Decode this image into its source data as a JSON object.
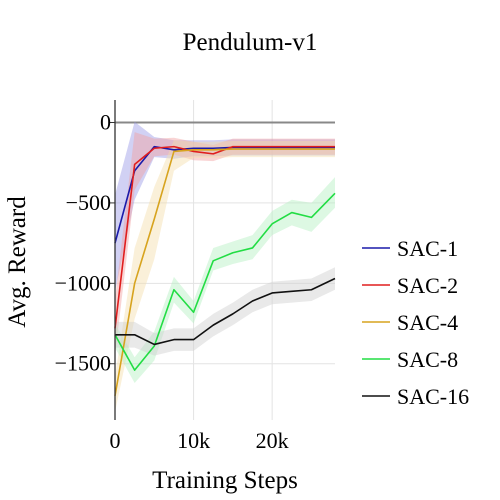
{
  "chart_data": {
    "type": "line",
    "title": "Pendulum-v1",
    "xlabel": "Training Steps",
    "ylabel": "Avg. Reward",
    "xlim": [
      0,
      28000
    ],
    "ylim": [
      -1850,
      140
    ],
    "x_ticks": [
      {
        "value": 0,
        "label": "0"
      },
      {
        "value": 10000,
        "label": "10k"
      },
      {
        "value": 20000,
        "label": "20k"
      }
    ],
    "y_ticks": [
      {
        "value": 0,
        "label": "0"
      },
      {
        "value": -500,
        "label": "−500"
      },
      {
        "value": -1000,
        "label": "−1000"
      },
      {
        "value": -1500,
        "label": "−1500"
      }
    ],
    "grid": true,
    "legend_position": "right",
    "series": [
      {
        "name": "SAC-1",
        "color": "#1a1aaa",
        "band_color": "#9a9ae6",
        "x": [
          0,
          2500,
          5000,
          7500,
          10000,
          12500,
          15000,
          17500,
          20000,
          22500,
          25000,
          28000
        ],
        "y": [
          -750,
          -300,
          -150,
          -170,
          -160,
          -160,
          -155,
          -155,
          -155,
          -155,
          -155,
          -155
        ],
        "lower": [
          -1050,
          -480,
          -215,
          -225,
          -210,
          -210,
          -205,
          -205,
          -205,
          -205,
          -205,
          -205
        ],
        "upper": [
          -450,
          5,
          -90,
          -110,
          -110,
          -110,
          -105,
          -105,
          -105,
          -105,
          -105,
          -105
        ]
      },
      {
        "name": "SAC-2",
        "color": "#e01e1e",
        "band_color": "#f2a0a0",
        "x": [
          0,
          2500,
          5000,
          7500,
          10000,
          12500,
          15000,
          17500,
          20000,
          22500,
          25000,
          28000
        ],
        "y": [
          -1280,
          -260,
          -160,
          -150,
          -180,
          -195,
          -150,
          -150,
          -150,
          -150,
          -150,
          -150
        ],
        "lower": [
          -1450,
          -420,
          -210,
          -200,
          -235,
          -240,
          -200,
          -200,
          -200,
          -200,
          -200,
          -200
        ],
        "upper": [
          -1100,
          -60,
          -100,
          -95,
          -120,
          -140,
          -100,
          -100,
          -100,
          -100,
          -100,
          -100
        ]
      },
      {
        "name": "SAC-4",
        "color": "#d7a31e",
        "band_color": "#f3deaa",
        "x": [
          0,
          2500,
          5000,
          7500,
          10000,
          12500,
          15000,
          17500,
          20000,
          22500,
          25000,
          28000
        ],
        "y": [
          -1700,
          -1000,
          -600,
          -180,
          -170,
          -170,
          -165,
          -165,
          -165,
          -165,
          -165,
          -165
        ],
        "lower": [
          -1800,
          -1220,
          -850,
          -300,
          -220,
          -220,
          -215,
          -215,
          -215,
          -215,
          -215,
          -215
        ],
        "upper": [
          -1580,
          -780,
          -400,
          -110,
          -120,
          -120,
          -115,
          -115,
          -115,
          -115,
          -115,
          -115
        ]
      },
      {
        "name": "SAC-8",
        "color": "#22dd44",
        "band_color": "#b4f0c0",
        "x": [
          0,
          2500,
          5000,
          7500,
          10000,
          12500,
          15000,
          17500,
          20000,
          22500,
          25000,
          28000
        ],
        "y": [
          -1320,
          -1540,
          -1390,
          -1040,
          -1180,
          -860,
          -810,
          -780,
          -630,
          -560,
          -590,
          -440
        ],
        "lower": [
          -1400,
          -1620,
          -1480,
          -1120,
          -1250,
          -920,
          -880,
          -850,
          -700,
          -640,
          -680,
          -530
        ],
        "upper": [
          -1250,
          -1460,
          -1300,
          -960,
          -1110,
          -780,
          -740,
          -700,
          -550,
          -480,
          -500,
          -340
        ]
      },
      {
        "name": "SAC-16",
        "color": "#111111",
        "band_color": "#cfcfcf",
        "x": [
          0,
          2500,
          5000,
          7500,
          10000,
          12500,
          15000,
          17500,
          20000,
          22500,
          25000,
          28000
        ],
        "y": [
          -1320,
          -1320,
          -1380,
          -1350,
          -1350,
          -1260,
          -1190,
          -1110,
          -1060,
          -1050,
          -1040,
          -970
        ],
        "lower": [
          -1400,
          -1400,
          -1450,
          -1420,
          -1420,
          -1330,
          -1260,
          -1180,
          -1130,
          -1120,
          -1110,
          -1040
        ],
        "upper": [
          -1240,
          -1240,
          -1310,
          -1280,
          -1280,
          -1190,
          -1120,
          -1040,
          -990,
          -980,
          -970,
          -900
        ]
      }
    ]
  }
}
